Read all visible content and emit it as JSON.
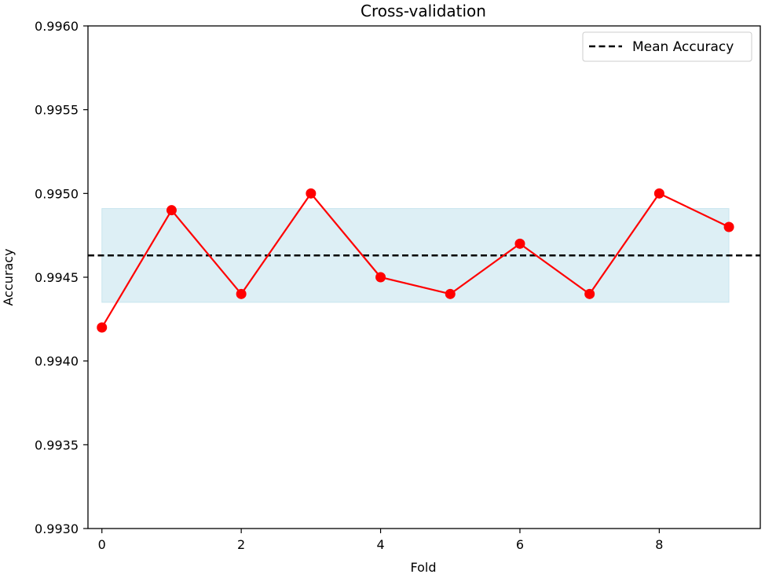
{
  "chart_data": {
    "type": "line",
    "title": "Cross-validation",
    "xlabel": "Fold",
    "ylabel": "Accuracy",
    "xlim": [
      -0.2,
      9.45
    ],
    "ylim": [
      0.993,
      0.996
    ],
    "x_ticks": [
      0,
      2,
      4,
      6,
      8
    ],
    "y_ticks": [
      "0.9930",
      "0.9935",
      "0.9940",
      "0.9945",
      "0.9950",
      "0.9955",
      "0.9960"
    ],
    "grid": false,
    "legend_position": "top-right",
    "series": [
      {
        "color": "#ff0000",
        "marker": "circle",
        "x": [
          0,
          1,
          2,
          3,
          4,
          5,
          6,
          7,
          8,
          9
        ],
        "values": [
          0.9942,
          0.9949,
          0.9944,
          0.995,
          0.9945,
          0.9944,
          0.9947,
          0.9944,
          0.995,
          0.9948
        ]
      }
    ],
    "reference_line": {
      "name": "Mean Accuracy",
      "value": 0.99463,
      "style": "dashed",
      "color": "#000000"
    },
    "band": {
      "x_range": [
        0,
        9
      ],
      "y_range": [
        0.99435,
        0.99491
      ],
      "color": "#add8e6"
    }
  }
}
